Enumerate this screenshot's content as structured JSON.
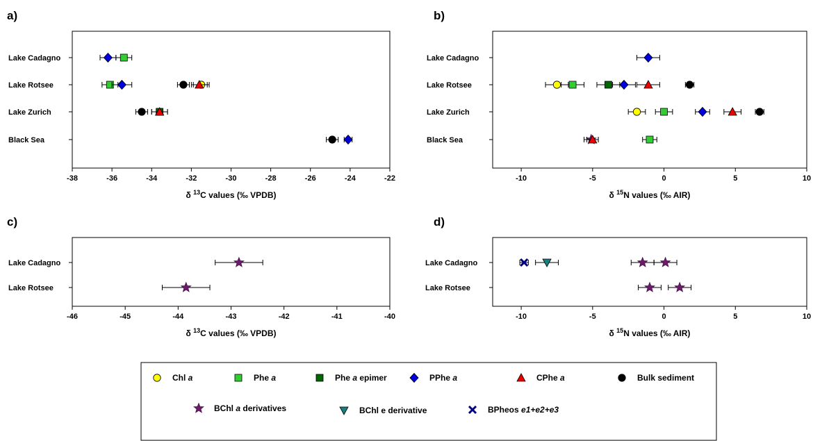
{
  "legend": {
    "items": [
      {
        "key": "chla",
        "label": "Chl ",
        "label_italic": "a",
        "marker": "circle",
        "color": "#ffff00"
      },
      {
        "key": "phea",
        "label": "Phe ",
        "label_italic": "a",
        "marker": "square",
        "color": "#33cc33"
      },
      {
        "key": "pheaep",
        "label": "Phe ",
        "label_italic": "a",
        "label_after": " epimer",
        "marker": "square",
        "color": "#006600"
      },
      {
        "key": "pphea",
        "label": "PPhe ",
        "label_italic": "a",
        "marker": "diamond",
        "color": "#0000dd"
      },
      {
        "key": "cphea",
        "label": "CPhe ",
        "label_italic": "a",
        "marker": "triangle",
        "color": "#ee0000"
      },
      {
        "key": "bulk",
        "label": "Bulk sediment",
        "label_italic": "",
        "marker": "circle",
        "color": "#000000"
      },
      {
        "key": "bchla",
        "label": "BChl ",
        "label_italic": "a",
        "label_after": " derivatives",
        "marker": "star",
        "color": "#6a1b6a"
      },
      {
        "key": "bchle",
        "label": "BChl e derivative",
        "label_italic": "",
        "marker": "triangle-down",
        "color": "#1a7f7f"
      },
      {
        "key": "bpheos",
        "label": "BPheos ",
        "label_italic": "e1+e2+e3",
        "marker": "x",
        "color": "#000080"
      }
    ]
  },
  "chart_data": [
    {
      "panel": "a)",
      "type": "scatter",
      "xlabel": "δ13C values (‰ VPDB)",
      "xlabel_parts": {
        "pre": "δ ",
        "sup": "13",
        "post": "C values (‰ VPDB)"
      },
      "xlim": [
        -38,
        -22
      ],
      "xticks": [
        -38,
        -36,
        -34,
        -32,
        -30,
        -28,
        -26,
        -24,
        -22
      ],
      "categories": [
        "Lake Cadagno",
        "Lake Rotsee",
        "Lake Zurich",
        "Black Sea"
      ],
      "points": [
        {
          "series": "pphea",
          "category": "Lake Cadagno",
          "x": -36.2,
          "err": 0.4
        },
        {
          "series": "phea",
          "category": "Lake Cadagno",
          "x": -35.4,
          "err": 0.4
        },
        {
          "series": "phea",
          "category": "Lake Rotsee",
          "x": -36.1,
          "err": 0.4
        },
        {
          "series": "pphea",
          "category": "Lake Rotsee",
          "x": -35.5,
          "err": 0.5
        },
        {
          "series": "bulk",
          "category": "Lake Rotsee",
          "x": -32.4,
          "err": 0.3
        },
        {
          "series": "chla",
          "category": "Lake Rotsee",
          "x": -31.5,
          "err": 0.4
        },
        {
          "series": "cphea",
          "category": "Lake Rotsee",
          "x": -31.6,
          "err": 0.4
        },
        {
          "series": "bulk",
          "category": "Lake Zurich",
          "x": -34.5,
          "err": 0.3
        },
        {
          "series": "pheaep",
          "category": "Lake Zurich",
          "x": -33.6,
          "err": 0.4
        },
        {
          "series": "cphea",
          "category": "Lake Zurich",
          "x": -33.6,
          "err": 0.4
        },
        {
          "series": "bulk",
          "category": "Black Sea",
          "x": -24.9,
          "err": 0.3
        },
        {
          "series": "pphea",
          "category": "Black Sea",
          "x": -24.1,
          "err": 0.2
        }
      ]
    },
    {
      "panel": "b)",
      "type": "scatter",
      "xlabel": "δ15N values (‰ AIR)",
      "xlabel_parts": {
        "pre": "δ ",
        "sup": "15",
        "post": "N values (‰ AIR)"
      },
      "xlim": [
        -12,
        10
      ],
      "xticks": [
        -10,
        -5,
        0,
        5,
        10
      ],
      "categories": [
        "Lake Cadagno",
        "Lake Rotsee",
        "Lake Zurich",
        "Black Sea"
      ],
      "points": [
        {
          "series": "pphea",
          "category": "Lake Cadagno",
          "x": -1.1,
          "err": 0.8
        },
        {
          "series": "chla",
          "category": "Lake Rotsee",
          "x": -7.5,
          "err": 0.8
        },
        {
          "series": "phea",
          "category": "Lake Rotsee",
          "x": -6.4,
          "err": 0.8
        },
        {
          "series": "pheaep",
          "category": "Lake Rotsee",
          "x": -3.9,
          "err": 0.8
        },
        {
          "series": "pphea",
          "category": "Lake Rotsee",
          "x": -2.8,
          "err": 0.8
        },
        {
          "series": "cphea",
          "category": "Lake Rotsee",
          "x": -1.1,
          "err": 0.8
        },
        {
          "series": "bulk",
          "category": "Lake Rotsee",
          "x": 1.8,
          "err": 0.3
        },
        {
          "series": "chla",
          "category": "Lake Zurich",
          "x": -1.9,
          "err": 0.6
        },
        {
          "series": "phea",
          "category": "Lake Zurich",
          "x": 0.0,
          "err": 0.6
        },
        {
          "series": "pphea",
          "category": "Lake Zurich",
          "x": 2.7,
          "err": 0.5
        },
        {
          "series": "cphea",
          "category": "Lake Zurich",
          "x": 4.8,
          "err": 0.6
        },
        {
          "series": "bulk",
          "category": "Lake Zurich",
          "x": 6.7,
          "err": 0.3
        },
        {
          "series": "bchla",
          "category": "Black Sea",
          "x": -5.1,
          "err": 0.5
        },
        {
          "series": "cphea",
          "category": "Black Sea",
          "x": -5.0,
          "err": 0.4
        },
        {
          "series": "phea",
          "category": "Black Sea",
          "x": -1.0,
          "err": 0.5
        }
      ]
    },
    {
      "panel": "c)",
      "type": "scatter",
      "xlabel": "δ13C values (‰ VPDB)",
      "xlabel_parts": {
        "pre": "δ ",
        "sup": "13",
        "post": "C values (‰ VPDB)"
      },
      "xlim": [
        -46,
        -40
      ],
      "xticks": [
        -46,
        -45,
        -44,
        -43,
        -42,
        -41,
        -40
      ],
      "categories": [
        "Lake Cadagno",
        "Lake Rotsee"
      ],
      "points": [
        {
          "series": "bchla",
          "category": "Lake Cadagno",
          "x": -42.85,
          "err": 0.45
        },
        {
          "series": "bchla",
          "category": "Lake Rotsee",
          "x": -43.85,
          "err": 0.45
        }
      ]
    },
    {
      "panel": "d)",
      "type": "scatter",
      "xlabel": "δ15N values (‰ AIR)",
      "xlabel_parts": {
        "pre": "δ ",
        "sup": "15",
        "post": "N values (‰ AIR)"
      },
      "xlim": [
        -12,
        10
      ],
      "xticks": [
        -10,
        -5,
        0,
        5,
        10
      ],
      "categories": [
        "Lake Cadagno",
        "Lake Rotsee"
      ],
      "points": [
        {
          "series": "bpheos",
          "category": "Lake Cadagno",
          "x": -9.8,
          "err": 0.3
        },
        {
          "series": "bchle",
          "category": "Lake Cadagno",
          "x": -8.2,
          "err": 0.8
        },
        {
          "series": "bchla",
          "category": "Lake Cadagno",
          "x": -1.5,
          "err": 0.8
        },
        {
          "series": "bchla",
          "category": "Lake Cadagno",
          "x": 0.1,
          "err": 0.8
        },
        {
          "series": "bchla",
          "category": "Lake Rotsee",
          "x": -1.0,
          "err": 0.8
        },
        {
          "series": "bchla",
          "category": "Lake Rotsee",
          "x": 1.1,
          "err": 0.8
        }
      ]
    }
  ]
}
